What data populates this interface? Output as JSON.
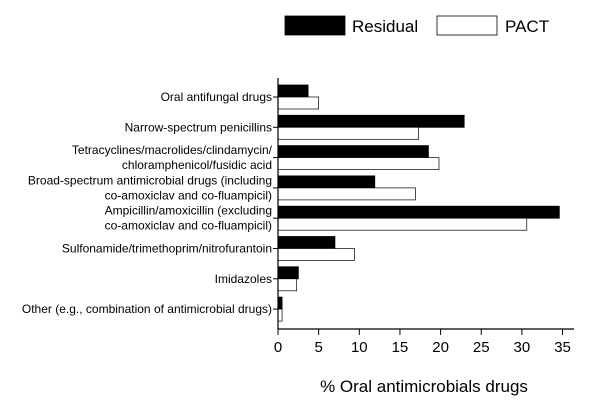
{
  "chart_data": {
    "type": "bar",
    "orientation": "horizontal",
    "categories": [
      [
        "Oral antifungal drugs"
      ],
      [
        "Narrow-spectrum penicillins"
      ],
      [
        "Tetracyclines/macrolides/clindamycin/",
        "chloramphenicol/fusidic acid"
      ],
      [
        "Broad-spectrum antimicrobial drugs (including",
        "co-amoxiclav and co-fluampicil)"
      ],
      [
        "Ampicillin/amoxicillin (excluding",
        "co-amoxiclav and co-fluampicil)"
      ],
      [
        "Sulfonamide/trimethoprim/nitrofurantoin"
      ],
      [
        "Imidazoles"
      ],
      [
        "Other (e.g., combination of antimicrobial drugs)"
      ]
    ],
    "series": [
      {
        "name": "Residual",
        "color": "#000000",
        "values": [
          3.7,
          22.9,
          18.5,
          11.9,
          34.6,
          7.0,
          2.5,
          0.5
        ]
      },
      {
        "name": "PACT",
        "color": "#ffffff",
        "values": [
          5.0,
          17.3,
          19.8,
          16.9,
          30.6,
          9.4,
          2.3,
          0.5
        ]
      }
    ],
    "xlabel": "% Oral antimicrobials drugs",
    "xlim": [
      0,
      36
    ],
    "xticks": [
      0,
      5,
      10,
      15,
      20,
      25,
      30,
      35
    ],
    "legend_position": "top-right",
    "grid": false
  }
}
